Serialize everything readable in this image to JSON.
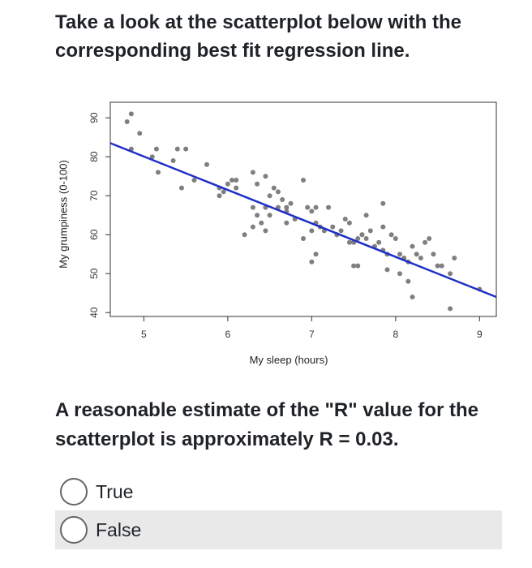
{
  "question": {
    "text": "Take a look at the scatterplot below with the corresponding best fit regression line."
  },
  "statement": {
    "text": "A reasonable estimate of the \"R\" value for the scatterplot is approximately R = 0.03."
  },
  "options": [
    {
      "label": "True",
      "selected": false
    },
    {
      "label": "False",
      "selected": false
    }
  ],
  "colors": {
    "points": "#7f7f7f",
    "line": "#1f2fc6",
    "highlight_row": "#e9e9e9"
  },
  "chart_data": {
    "type": "scatter",
    "xlabel": "My sleep (hours)",
    "ylabel": "My grumpiness (0-100)",
    "xlim": [
      4.6,
      9.2
    ],
    "ylim": [
      39,
      94
    ],
    "xticks": [
      5,
      6,
      7,
      8,
      9
    ],
    "yticks": [
      40,
      50,
      60,
      70,
      80,
      90
    ],
    "regression_line": {
      "x": [
        4.6,
        9.2
      ],
      "y": [
        83.5,
        44
      ]
    },
    "points": [
      [
        4.8,
        89
      ],
      [
        4.85,
        91
      ],
      [
        4.95,
        86
      ],
      [
        4.85,
        82
      ],
      [
        5.1,
        80
      ],
      [
        5.15,
        82
      ],
      [
        5.35,
        79
      ],
      [
        5.4,
        82
      ],
      [
        5.5,
        82
      ],
      [
        5.17,
        76
      ],
      [
        5.45,
        72
      ],
      [
        5.6,
        74
      ],
      [
        5.75,
        78
      ],
      [
        5.9,
        72
      ],
      [
        5.95,
        71
      ],
      [
        5.9,
        70
      ],
      [
        6.0,
        73
      ],
      [
        6.05,
        74
      ],
      [
        6.1,
        74
      ],
      [
        6.3,
        76
      ],
      [
        6.35,
        73
      ],
      [
        6.45,
        75
      ],
      [
        6.5,
        70
      ],
      [
        6.55,
        72
      ],
      [
        6.6,
        71
      ],
      [
        6.3,
        67
      ],
      [
        6.35,
        65
      ],
      [
        6.45,
        67
      ],
      [
        6.5,
        65
      ],
      [
        6.6,
        67
      ],
      [
        6.4,
        63
      ],
      [
        6.2,
        60
      ],
      [
        6.3,
        62
      ],
      [
        6.45,
        61
      ],
      [
        6.65,
        69
      ],
      [
        6.7,
        67
      ],
      [
        6.75,
        68
      ],
      [
        6.7,
        63
      ],
      [
        6.9,
        74
      ],
      [
        6.95,
        67
      ],
      [
        7.0,
        66
      ],
      [
        7.05,
        67
      ],
      [
        6.9,
        59
      ],
      [
        7.0,
        61
      ],
      [
        7.05,
        63
      ],
      [
        7.1,
        62
      ],
      [
        7.15,
        61
      ],
      [
        7.2,
        67
      ],
      [
        7.25,
        62
      ],
      [
        7.3,
        60
      ],
      [
        7.35,
        61
      ],
      [
        7.4,
        64
      ],
      [
        7.45,
        63
      ],
      [
        7.5,
        58
      ],
      [
        7.55,
        59
      ],
      [
        7.6,
        60
      ],
      [
        7.65,
        59
      ],
      [
        7.7,
        61
      ],
      [
        7.75,
        57
      ],
      [
        7.8,
        58
      ],
      [
        7.85,
        56
      ],
      [
        7.9,
        55
      ],
      [
        7.65,
        65
      ],
      [
        7.85,
        62
      ],
      [
        7.95,
        60
      ],
      [
        8.0,
        59
      ],
      [
        7.85,
        68
      ],
      [
        8.05,
        55
      ],
      [
        8.1,
        54
      ],
      [
        8.15,
        53
      ],
      [
        8.2,
        57
      ],
      [
        8.25,
        55
      ],
      [
        8.3,
        54
      ],
      [
        8.35,
        58
      ],
      [
        8.4,
        59
      ],
      [
        8.45,
        55
      ],
      [
        8.5,
        52
      ],
      [
        8.55,
        52
      ],
      [
        8.65,
        50
      ],
      [
        8.7,
        54
      ],
      [
        7.0,
        53
      ],
      [
        7.05,
        55
      ],
      [
        7.5,
        52
      ],
      [
        7.55,
        52
      ],
      [
        7.9,
        51
      ],
      [
        8.05,
        50
      ],
      [
        8.15,
        48
      ],
      [
        8.2,
        44
      ],
      [
        8.65,
        41
      ],
      [
        9.0,
        46
      ],
      [
        6.1,
        72
      ],
      [
        6.7,
        66
      ],
      [
        6.8,
        64
      ],
      [
        7.3,
        60
      ],
      [
        7.45,
        58
      ],
      [
        7.6,
        60
      ]
    ]
  }
}
